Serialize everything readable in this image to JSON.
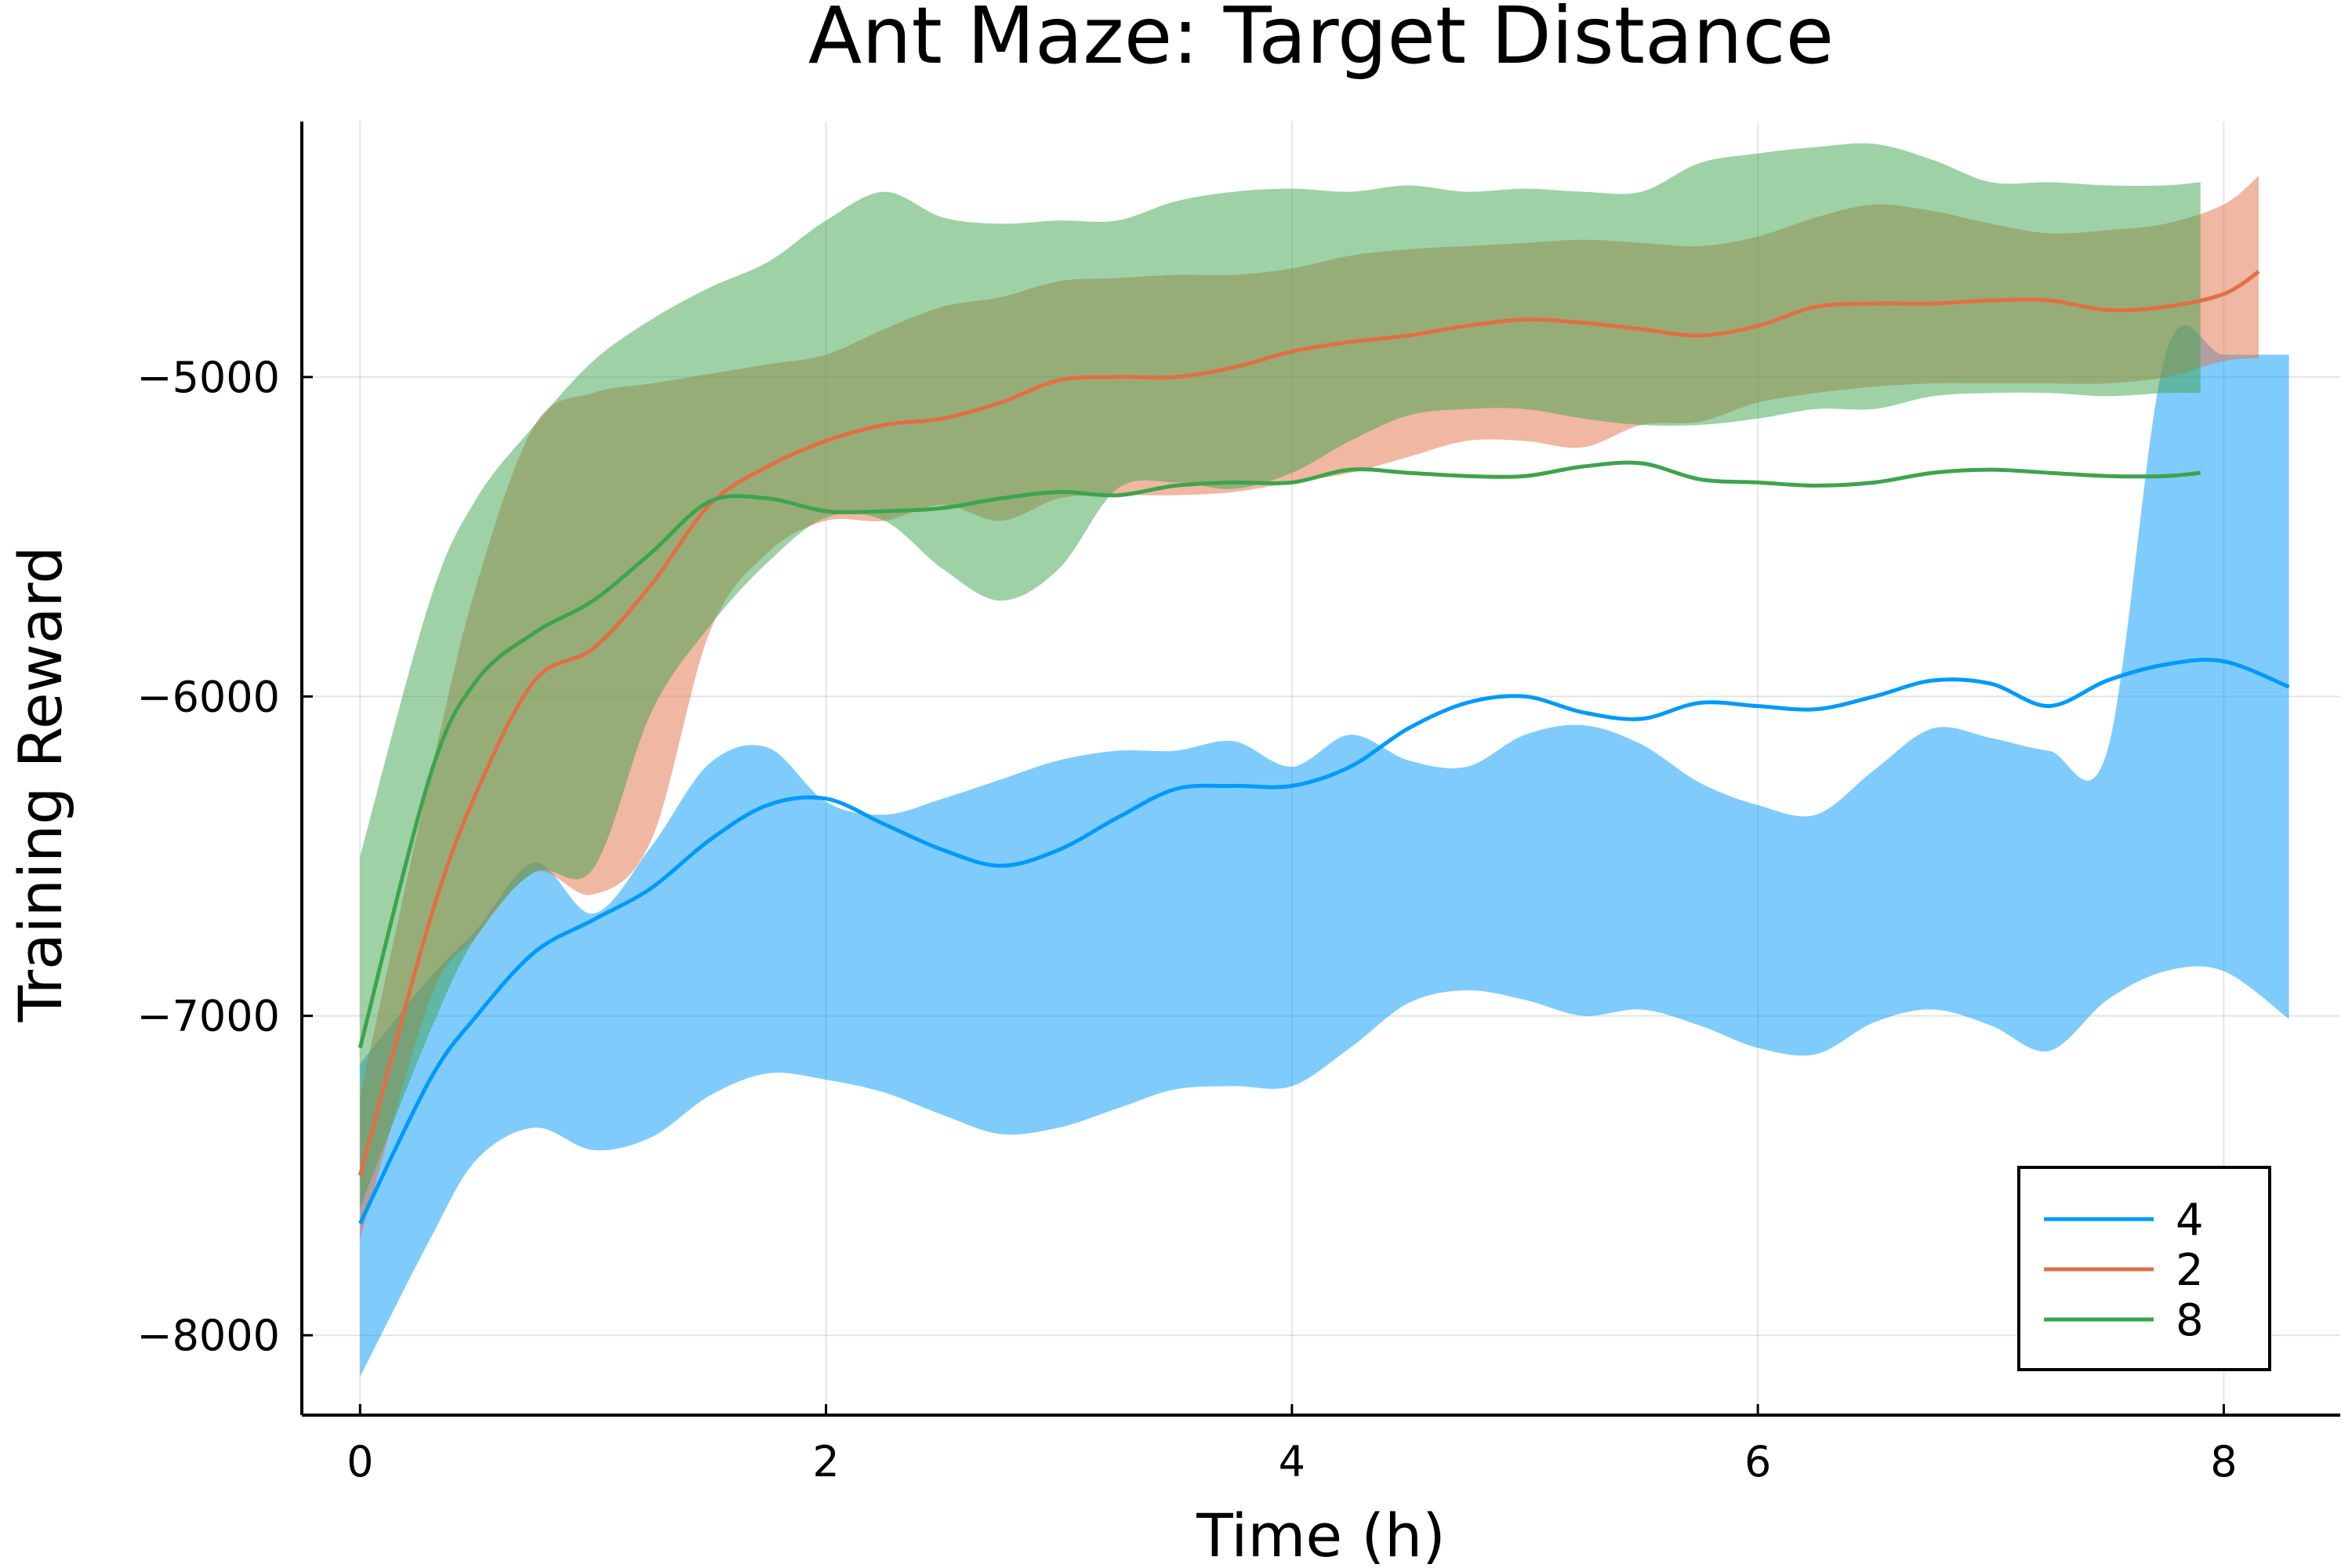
{
  "chart_data": {
    "type": "line",
    "title": "Ant Maze: Target Distance",
    "xlabel": "Time (h)",
    "ylabel": "Training Reward",
    "xlim": [
      -0.25,
      8.5
    ],
    "ylim": [
      -8250,
      -4200
    ],
    "xticks": [
      0,
      2,
      4,
      6,
      8
    ],
    "xtick_labels": [
      "0",
      "2",
      "4",
      "6",
      "8"
    ],
    "yticks": [
      -8000,
      -7000,
      -6000,
      -5000
    ],
    "ytick_labels": [
      "−8000",
      "−7000",
      "−6000",
      "−5000"
    ],
    "grid": true,
    "legend": {
      "position": "bottom-right"
    },
    "series": [
      {
        "name": "4",
        "color": "#009af9",
        "band_opacity": 0.5,
        "x": [
          0,
          0.3,
          0.5,
          0.75,
          1.0,
          1.25,
          1.5,
          1.75,
          2.0,
          2.25,
          2.5,
          2.75,
          3.0,
          3.25,
          3.5,
          3.75,
          4.0,
          4.25,
          4.5,
          4.75,
          5.0,
          5.25,
          5.5,
          5.75,
          6.0,
          6.25,
          6.5,
          6.75,
          7.0,
          7.25,
          7.5,
          7.75,
          8.0,
          8.28
        ],
        "mean": [
          -7650,
          -7200,
          -7000,
          -6800,
          -6700,
          -6600,
          -6450,
          -6340,
          -6320,
          -6400,
          -6480,
          -6530,
          -6480,
          -6380,
          -6290,
          -6280,
          -6280,
          -6220,
          -6100,
          -6020,
          -6000,
          -6050,
          -6070,
          -6020,
          -6030,
          -6040,
          -6000,
          -5950,
          -5960,
          -6030,
          -5950,
          -5900,
          -5890,
          -5970
        ],
        "upper": [
          -7150,
          -6880,
          -6730,
          -6520,
          -6680,
          -6470,
          -6210,
          -6160,
          -6330,
          -6370,
          -6320,
          -6260,
          -6200,
          -6170,
          -6170,
          -6140,
          -6220,
          -6120,
          -6200,
          -6220,
          -6120,
          -6090,
          -6150,
          -6270,
          -6340,
          -6370,
          -6230,
          -6100,
          -6130,
          -6170,
          -6170,
          -4930,
          -4930,
          -4930
        ],
        "lower": [
          -8130,
          -7700,
          -7450,
          -7350,
          -7420,
          -7380,
          -7250,
          -7180,
          -7200,
          -7240,
          -7310,
          -7370,
          -7350,
          -7290,
          -7230,
          -7220,
          -7220,
          -7100,
          -6960,
          -6920,
          -6950,
          -7000,
          -6980,
          -7030,
          -7100,
          -7120,
          -7020,
          -6980,
          -7030,
          -7110,
          -6950,
          -6860,
          -6860,
          -7010
        ]
      },
      {
        "name": "2",
        "color": "#e26f46",
        "band_opacity": 0.5,
        "x": [
          0,
          0.3,
          0.5,
          0.75,
          1.0,
          1.25,
          1.5,
          1.75,
          2.0,
          2.25,
          2.5,
          2.75,
          3.0,
          3.25,
          3.5,
          3.75,
          4.0,
          4.25,
          4.5,
          4.75,
          5.0,
          5.25,
          5.5,
          5.75,
          6.0,
          6.25,
          6.5,
          6.75,
          7.0,
          7.25,
          7.5,
          7.75,
          8.0,
          8.15
        ],
        "mean": [
          -7500,
          -6700,
          -6300,
          -5950,
          -5850,
          -5650,
          -5400,
          -5280,
          -5200,
          -5150,
          -5130,
          -5080,
          -5010,
          -5000,
          -5000,
          -4970,
          -4920,
          -4890,
          -4870,
          -4840,
          -4820,
          -4830,
          -4850,
          -4870,
          -4840,
          -4780,
          -4770,
          -4770,
          -4760,
          -4760,
          -4790,
          -4780,
          -4740,
          -4670
        ],
        "upper": [
          -7250,
          -6250,
          -5650,
          -5150,
          -5050,
          -5020,
          -4990,
          -4960,
          -4930,
          -4850,
          -4780,
          -4750,
          -4700,
          -4690,
          -4680,
          -4680,
          -4660,
          -4620,
          -4600,
          -4590,
          -4580,
          -4570,
          -4580,
          -4590,
          -4560,
          -4500,
          -4460,
          -4480,
          -4520,
          -4550,
          -4540,
          -4520,
          -4460,
          -4370
        ],
        "lower": [
          -7700,
          -6950,
          -6750,
          -6550,
          -6620,
          -6450,
          -5800,
          -5550,
          -5450,
          -5450,
          -5400,
          -5450,
          -5380,
          -5370,
          -5370,
          -5360,
          -5330,
          -5300,
          -5250,
          -5200,
          -5200,
          -5220,
          -5150,
          -5140,
          -5080,
          -5050,
          -5030,
          -5020,
          -5020,
          -5020,
          -5020,
          -5000,
          -4950,
          -4940
        ]
      },
      {
        "name": "8",
        "color": "#3da44d",
        "band_opacity": 0.5,
        "x": [
          0,
          0.3,
          0.5,
          0.75,
          1.0,
          1.25,
          1.5,
          1.75,
          2.0,
          2.25,
          2.5,
          2.75,
          3.0,
          3.25,
          3.5,
          3.75,
          4.0,
          4.25,
          4.5,
          4.75,
          5.0,
          5.25,
          5.5,
          5.75,
          6.0,
          6.25,
          6.5,
          6.75,
          7.0,
          7.25,
          7.5,
          7.75,
          7.9
        ],
        "mean": [
          -7100,
          -6250,
          -5950,
          -5800,
          -5700,
          -5550,
          -5390,
          -5380,
          -5420,
          -5420,
          -5410,
          -5380,
          -5360,
          -5370,
          -5340,
          -5330,
          -5330,
          -5290,
          -5300,
          -5310,
          -5310,
          -5280,
          -5270,
          -5320,
          -5330,
          -5340,
          -5330,
          -5300,
          -5290,
          -5300,
          -5310,
          -5310,
          -5300
        ],
        "upper": [
          -6500,
          -5700,
          -5380,
          -5150,
          -4950,
          -4820,
          -4720,
          -4640,
          -4510,
          -4420,
          -4500,
          -4520,
          -4510,
          -4510,
          -4450,
          -4420,
          -4410,
          -4420,
          -4400,
          -4420,
          -4410,
          -4420,
          -4420,
          -4330,
          -4300,
          -4280,
          -4270,
          -4320,
          -4390,
          -4390,
          -4400,
          -4400,
          -4390
        ],
        "lower": [
          -7600,
          -7050,
          -6750,
          -6550,
          -6540,
          -6050,
          -5780,
          -5580,
          -5440,
          -5450,
          -5600,
          -5700,
          -5600,
          -5350,
          -5330,
          -5350,
          -5300,
          -5200,
          -5120,
          -5100,
          -5100,
          -5130,
          -5150,
          -5150,
          -5130,
          -5100,
          -5100,
          -5060,
          -5050,
          -5050,
          -5060,
          -5050,
          -5050
        ]
      }
    ]
  }
}
